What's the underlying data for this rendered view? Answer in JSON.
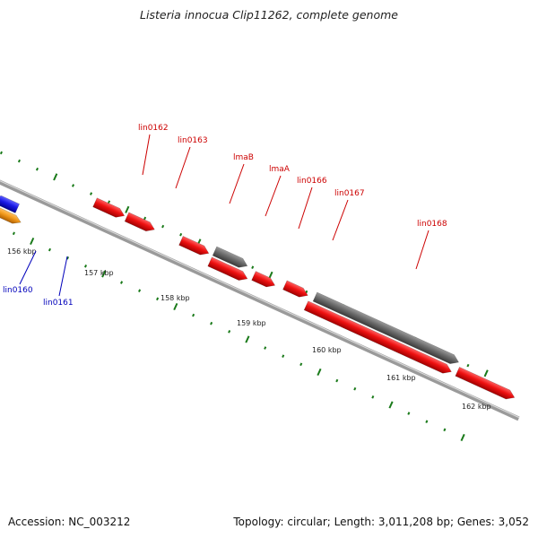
{
  "title": "Listeria innocua Clip11262, complete genome",
  "footer": {
    "accession": "Accession: NC_003212",
    "summary": "Topology: circular; Length: 3,011,208 bp; Genes: 3,052"
  },
  "colors": {
    "backbone": "#9a9a9a",
    "forward_gene": "#ee1111",
    "reverse_gene": "#1a1ae6",
    "orange_gene": "#f29a1c",
    "gray_gene": "#6b6b6b",
    "tick": "#1a7a1a",
    "label_red": "#cc0000",
    "label_blue": "#0000bb"
  },
  "scale": {
    "tick_labels": [
      "156 kbp",
      "157 kbp",
      "158 kbp",
      "159 kbp",
      "160 kbp",
      "161 kbp",
      "162 kbp"
    ]
  },
  "gene_labels": [
    {
      "text": "lin0160",
      "color": "blue"
    },
    {
      "text": "lin0161",
      "color": "blue"
    },
    {
      "text": "lin0162",
      "color": "red"
    },
    {
      "text": "lin0163",
      "color": "red"
    },
    {
      "text": "lmaB",
      "color": "red"
    },
    {
      "text": "lmaA",
      "color": "red"
    },
    {
      "text": "lin0166",
      "color": "red"
    },
    {
      "text": "lin0167",
      "color": "red"
    },
    {
      "text": "lin0168",
      "color": "red"
    }
  ]
}
